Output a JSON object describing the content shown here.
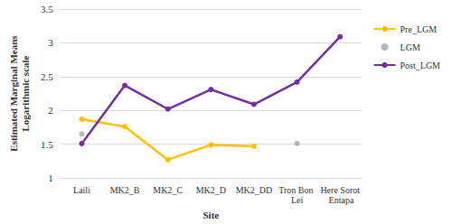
{
  "chart_data": {
    "type": "line",
    "x_label": "Site",
    "y_label": "Estimated Marginal Means\nLogarithmic scale",
    "categories": [
      "Laili",
      "MK2_B",
      "MK2_C",
      "MK2_D",
      "MK2_DD",
      "Tron Bon Lei",
      "Here Sorot Entapa"
    ],
    "series": [
      {
        "name": "Pre_LGM",
        "color": "#FFC000",
        "type": "line",
        "marker": "circle",
        "line_style": "solid",
        "values": [
          1.87,
          1.76,
          1.27,
          1.49,
          1.47,
          null,
          null
        ]
      },
      {
        "name": "LGM",
        "color": "#A5A5A5",
        "type": "scatter",
        "marker": "circle",
        "values": [
          1.65,
          null,
          null,
          null,
          null,
          1.51,
          null
        ]
      },
      {
        "name": "Post_LGM",
        "color": "#7030A0",
        "type": "line",
        "marker": "circle",
        "line_style": "solid",
        "values": [
          1.51,
          2.37,
          2.02,
          2.31,
          2.09,
          2.42,
          3.09
        ]
      }
    ],
    "ylim": [
      1,
      3.5
    ],
    "yticks": [
      1,
      1.5,
      2,
      2.5,
      3,
      3.5
    ],
    "grid": true,
    "legend": "right"
  }
}
